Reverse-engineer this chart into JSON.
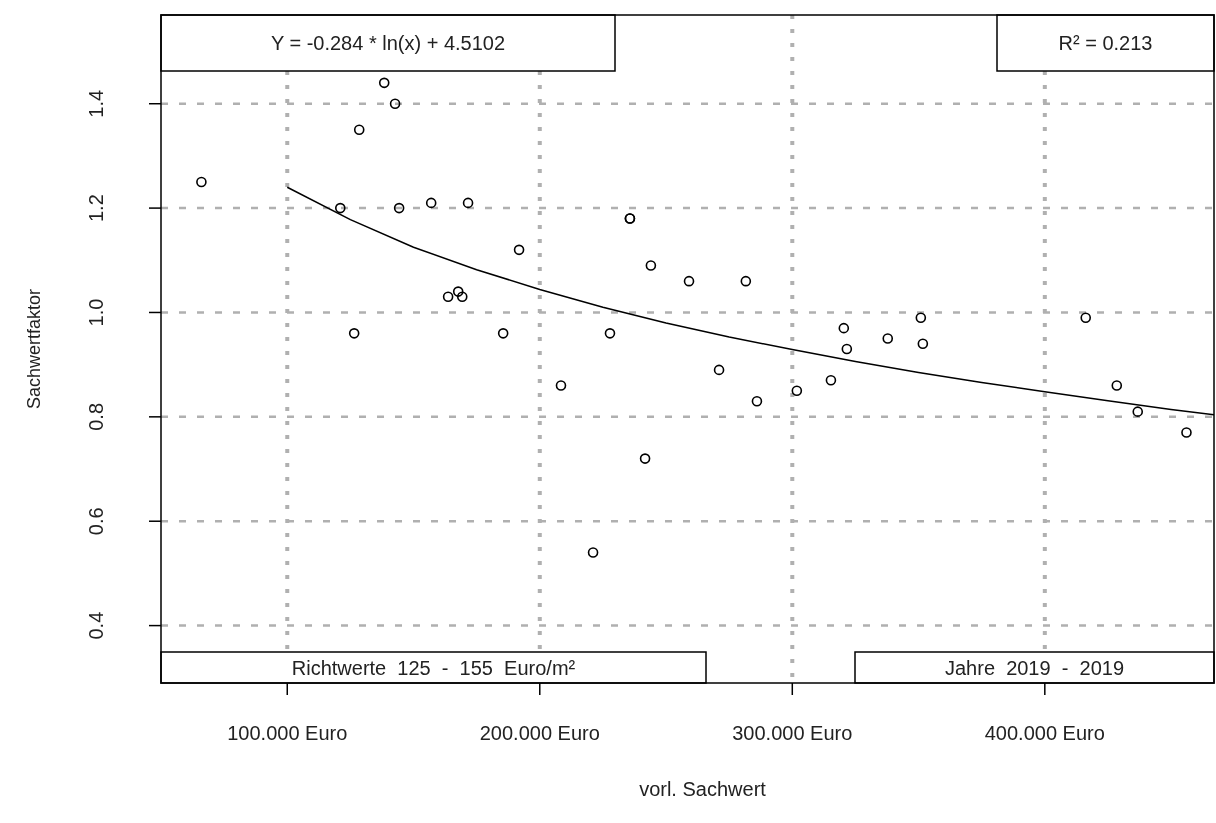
{
  "chart_data": {
    "type": "scatter",
    "xlabel": "vorl. Sachwert",
    "ylabel": "Sachwertfaktor",
    "xlim": [
      50,
      467
    ],
    "ylim": [
      0.29,
      1.57
    ],
    "xticks": [
      {
        "value": 100,
        "label": "100.000 Euro"
      },
      {
        "value": 200,
        "label": "200.000 Euro"
      },
      {
        "value": 300,
        "label": "300.000 Euro"
      },
      {
        "value": 400,
        "label": "400.000 Euro"
      }
    ],
    "yticks": [
      {
        "value": 0.4,
        "label": "0.4"
      },
      {
        "value": 0.6,
        "label": "0.6"
      },
      {
        "value": 0.8,
        "label": "0.8"
      },
      {
        "value": 1,
        "label": "1.0"
      },
      {
        "value": 1.2,
        "label": "1.2"
      },
      {
        "value": 1.4,
        "label": "1.4"
      }
    ],
    "grid": true,
    "series": [
      {
        "marker": "circle",
        "color": "#000000",
        "x": [
          66,
          138.4,
          142.7,
          128.5,
          121,
          144.3,
          157,
          171.6,
          191.8,
          126.5,
          185.5,
          163.7,
          167.7,
          169.3,
          235.7,
          235.7,
          244,
          259.1,
          281.6,
          227.8,
          208.4,
          271,
          286,
          301.8,
          315.3,
          320.4,
          321.6,
          337.8,
          350.9,
          351.7,
          221.1,
          241.7,
          416.2,
          428.5,
          436.8,
          456.1
        ],
        "values": [
          1.25,
          1.44,
          1.4,
          1.35,
          1.2,
          1.2,
          1.21,
          1.21,
          1.12,
          0.96,
          0.96,
          1.03,
          1.04,
          1.03,
          1.18,
          1.18,
          1.09,
          1.06,
          1.06,
          0.96,
          0.86,
          0.89,
          0.83,
          0.85,
          0.87,
          0.97,
          0.93,
          0.95,
          0.99,
          0.94,
          0.54,
          0.72,
          0.99,
          0.86,
          0.81,
          0.77
        ]
      },
      {
        "type": "line",
        "color": "#000000",
        "line_style": "solid",
        "x": [
          100,
          125,
          150,
          175,
          200,
          225,
          250,
          275,
          300,
          325,
          350,
          375,
          400,
          425,
          450,
          467
        ],
        "values": [
          1.24,
          1.178,
          1.125,
          1.082,
          1.044,
          1.01,
          0.98,
          0.953,
          0.929,
          0.906,
          0.885,
          0.866,
          0.848,
          0.831,
          0.814,
          0.804
        ]
      }
    ],
    "annotations": [
      "Y = -0.284 * ln(x) + 4.5102",
      "R² = 0.213",
      "Richtwerte  125  -  155  Euro/m²",
      "Jahre  2019  -  2019"
    ]
  }
}
